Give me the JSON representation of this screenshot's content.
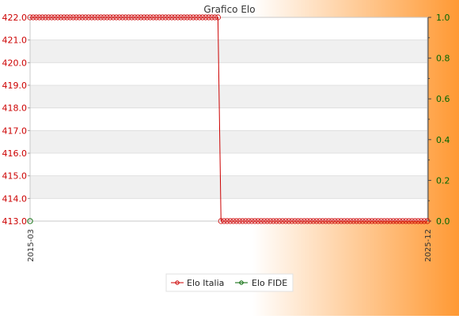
{
  "chart_data": {
    "type": "line",
    "title": "Grafico Elo",
    "ylim_left": [
      413.0,
      422.0
    ],
    "yticks_left": [
      "413.0",
      "414.0",
      "415.0",
      "416.0",
      "417.0",
      "418.0",
      "419.0",
      "420.0",
      "421.0",
      "422.0"
    ],
    "ylim_right": [
      0.0,
      1.0
    ],
    "yticks_right": [
      "0.0",
      "0.2",
      "0.4",
      "0.6",
      "0.8",
      "1.0"
    ],
    "x_first_label": "2015-03",
    "x_last_label": "2025-12",
    "x_note": "Monthly categories 2015-03 to 2025-12; intermediate tick labels overlap and are illegible in the source image.",
    "series": [
      {
        "name": "Elo Italia",
        "axis": "left",
        "color": "#cc0000",
        "segments": [
          {
            "from": "2015-03",
            "to": "2020-04",
            "value": 422.0
          },
          {
            "from": "2020-05",
            "to": "2025-12",
            "value": 413.0
          }
        ]
      },
      {
        "name": "Elo FIDE",
        "axis": "right",
        "color": "#006600",
        "points": [
          {
            "x": "2015-03",
            "value": 0.0
          }
        ]
      }
    ],
    "grid": true,
    "legend": "bottom"
  },
  "colors": {
    "background_gradient": [
      "#ffffff",
      "#ff9933"
    ],
    "plot_band_light": "#ffffff",
    "plot_band_dark": "#f0f0f0"
  }
}
